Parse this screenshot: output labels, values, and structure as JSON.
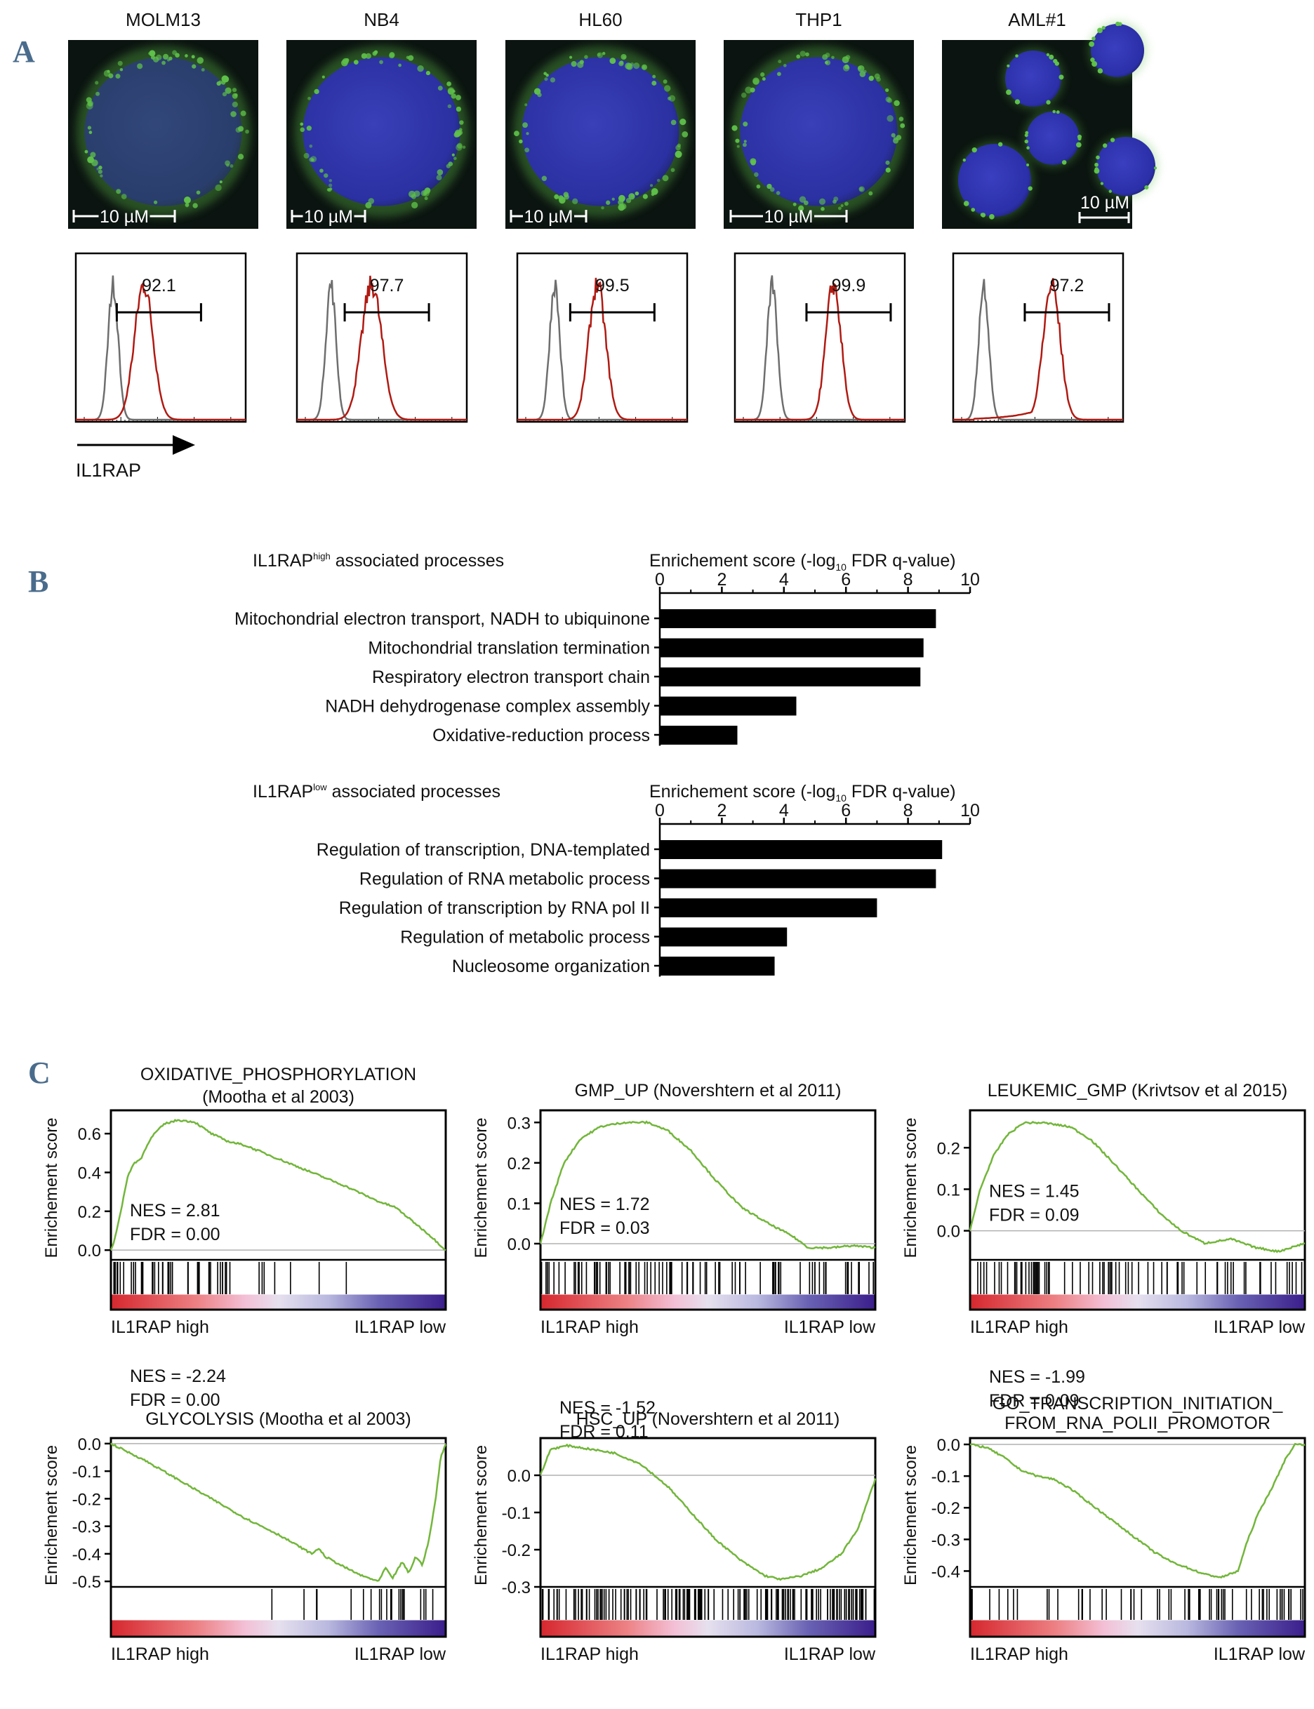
{
  "colors": {
    "panel_letter": "#4a6c8c",
    "isotype": "#6e6e6e",
    "il1rap": "#b01a12",
    "gsea_line": "#72b63a",
    "bars": "#000000",
    "dapi": "#2b2fa8",
    "il1rap_stain": "#5fc04a"
  },
  "panel_a": {
    "letter": "A",
    "x_axis_label": "IL1RAP",
    "cells": [
      {
        "name": "MOLM13",
        "scale_bar": "10 µM",
        "percent": "92.1"
      },
      {
        "name": "NB4",
        "scale_bar": "10 µM",
        "percent": "97.7"
      },
      {
        "name": "HL60",
        "scale_bar": "10 µM",
        "percent": "99.5"
      },
      {
        "name": "THP1",
        "scale_bar": "10 µM",
        "percent": "99.9"
      },
      {
        "name": "AML#1",
        "scale_bar": "10 µM",
        "percent": "97.2"
      }
    ]
  },
  "panel_b": {
    "letter": "B",
    "charts": [
      {
        "type": "bar",
        "title_main": "IL1RAP",
        "title_sup": "high",
        "title_rest": " associated processes",
        "axis_title_pre": "Enrichement score (-log",
        "axis_title_sub": "10",
        "axis_title_post": " FDR q-value)",
        "xlim": [
          0,
          10
        ],
        "ticks": [
          "0",
          "2",
          "4",
          "6",
          "8",
          "10"
        ],
        "categories": [
          "Mitochondrial electron transport, NADH to ubiquinone",
          "Mitochondrial translation termination",
          "Respiratory electron transport chain",
          "NADH dehydrogenase complex assembly",
          "Oxidative-reduction process"
        ],
        "values": [
          8.9,
          8.5,
          8.4,
          4.4,
          2.5
        ]
      },
      {
        "type": "bar",
        "title_main": "IL1RAP",
        "title_sup": "low",
        "title_rest": " associated processes",
        "axis_title_pre": "Enrichement score (-log",
        "axis_title_sub": "10",
        "axis_title_post": " FDR q-value)",
        "xlim": [
          0,
          10
        ],
        "ticks": [
          "0",
          "2",
          "4",
          "6",
          "8",
          "10"
        ],
        "categories": [
          "Regulation of transcription, DNA-templated",
          "Regulation of RNA metabolic process",
          "Regulation of transcription by RNA pol II",
          "Regulation of metabolic process",
          "Nucleosome organization"
        ],
        "values": [
          9.1,
          8.9,
          7.0,
          4.1,
          3.7
        ]
      }
    ]
  },
  "panel_c": {
    "letter": "C",
    "ylabel": "Enrichement score",
    "left_label": "IL1RAP high",
    "right_label": "IL1RAP low",
    "plots": [
      {
        "title1": "OXIDATIVE_PHOSPHORYLATION",
        "title2": "(Mootha et al 2003)",
        "nes": "NES = 2.81",
        "fdr": "FDR = 0.00",
        "ylim": [
          -0.05,
          0.72
        ],
        "ticks": [
          {
            "v": 0.0,
            "t": "0.0"
          },
          {
            "v": 0.2,
            "t": "0.2"
          },
          {
            "v": 0.4,
            "t": "0.4"
          },
          {
            "v": 0.6,
            "t": "0.6"
          }
        ],
        "curve": [
          [
            0,
            0.0
          ],
          [
            0.01,
            0.05
          ],
          [
            0.03,
            0.2
          ],
          [
            0.05,
            0.38
          ],
          [
            0.07,
            0.45
          ],
          [
            0.09,
            0.47
          ],
          [
            0.11,
            0.55
          ],
          [
            0.13,
            0.6
          ],
          [
            0.16,
            0.65
          ],
          [
            0.2,
            0.67
          ],
          [
            0.25,
            0.66
          ],
          [
            0.3,
            0.6
          ],
          [
            0.35,
            0.56
          ],
          [
            0.4,
            0.54
          ],
          [
            0.5,
            0.47
          ],
          [
            0.6,
            0.4
          ],
          [
            0.7,
            0.33
          ],
          [
            0.8,
            0.25
          ],
          [
            0.85,
            0.22
          ],
          [
            0.9,
            0.15
          ],
          [
            0.95,
            0.08
          ],
          [
            1.0,
            0.0
          ]
        ],
        "hit_density": [
          [
            0.0,
            0.2,
            28
          ],
          [
            0.2,
            0.35,
            14
          ],
          [
            0.35,
            0.55,
            6
          ],
          [
            0.55,
            0.8,
            2
          ],
          [
            0.8,
            1.0,
            0
          ]
        ]
      },
      {
        "title1": "GMP_UP (Novershtern et al 2011)",
        "title2": "",
        "nes": "NES = 1.72",
        "fdr": "FDR = 0.03",
        "ylim": [
          -0.04,
          0.33
        ],
        "ticks": [
          {
            "v": 0.0,
            "t": "0.0"
          },
          {
            "v": 0.1,
            "t": "0.1"
          },
          {
            "v": 0.2,
            "t": "0.2"
          },
          {
            "v": 0.3,
            "t": "0.3"
          }
        ],
        "curve": [
          [
            0,
            0.0
          ],
          [
            0.03,
            0.1
          ],
          [
            0.07,
            0.2
          ],
          [
            0.12,
            0.26
          ],
          [
            0.18,
            0.29
          ],
          [
            0.25,
            0.3
          ],
          [
            0.32,
            0.3
          ],
          [
            0.38,
            0.28
          ],
          [
            0.45,
            0.23
          ],
          [
            0.52,
            0.16
          ],
          [
            0.6,
            0.09
          ],
          [
            0.68,
            0.05
          ],
          [
            0.75,
            0.02
          ],
          [
            0.8,
            -0.01
          ],
          [
            0.87,
            -0.01
          ],
          [
            0.93,
            -0.005
          ],
          [
            1.0,
            -0.01
          ]
        ],
        "hit_density": [
          [
            0.0,
            0.3,
            32
          ],
          [
            0.3,
            0.6,
            26
          ],
          [
            0.6,
            0.85,
            16
          ],
          [
            0.85,
            1.0,
            10
          ]
        ]
      },
      {
        "title1": "LEUKEMIC_GMP (Krivtsov et al 2015)",
        "title2": "",
        "nes": "NES = 1.45",
        "fdr": "FDR = 0.09",
        "ylim": [
          -0.07,
          0.29
        ],
        "ticks": [
          {
            "v": 0.0,
            "t": "0.0"
          },
          {
            "v": 0.1,
            "t": "0.1"
          },
          {
            "v": 0.2,
            "t": "0.2"
          }
        ],
        "curve": [
          [
            0,
            0.0
          ],
          [
            0.03,
            0.1
          ],
          [
            0.07,
            0.18
          ],
          [
            0.11,
            0.23
          ],
          [
            0.16,
            0.26
          ],
          [
            0.22,
            0.26
          ],
          [
            0.3,
            0.25
          ],
          [
            0.36,
            0.22
          ],
          [
            0.42,
            0.17
          ],
          [
            0.5,
            0.1
          ],
          [
            0.57,
            0.04
          ],
          [
            0.63,
            0.0
          ],
          [
            0.7,
            -0.03
          ],
          [
            0.78,
            -0.02
          ],
          [
            0.85,
            -0.04
          ],
          [
            0.92,
            -0.05
          ],
          [
            0.96,
            -0.04
          ],
          [
            1.0,
            -0.03
          ]
        ],
        "hit_density": [
          [
            0.0,
            0.3,
            30
          ],
          [
            0.3,
            0.6,
            22
          ],
          [
            0.6,
            0.85,
            14
          ],
          [
            0.85,
            1.0,
            10
          ]
        ]
      },
      {
        "title1": "GLYCOLYSIS (Mootha et al 2003)",
        "title2": "",
        "nes": "NES = -2.24",
        "fdr": "FDR = 0.00",
        "ylim": [
          -0.52,
          0.02
        ],
        "ticks": [
          {
            "v": 0.0,
            "t": "0.0"
          },
          {
            "v": -0.1,
            "t": "-0.1"
          },
          {
            "v": -0.2,
            "t": "-0.2"
          },
          {
            "v": -0.3,
            "t": "-0.3"
          },
          {
            "v": -0.4,
            "t": "-0.4"
          },
          {
            "v": -0.5,
            "t": "-0.5"
          }
        ],
        "curve": [
          [
            0,
            0.0
          ],
          [
            0.1,
            -0.06
          ],
          [
            0.2,
            -0.13
          ],
          [
            0.3,
            -0.2
          ],
          [
            0.4,
            -0.27
          ],
          [
            0.5,
            -0.33
          ],
          [
            0.6,
            -0.4
          ],
          [
            0.62,
            -0.38
          ],
          [
            0.64,
            -0.41
          ],
          [
            0.7,
            -0.45
          ],
          [
            0.75,
            -0.48
          ],
          [
            0.8,
            -0.5
          ],
          [
            0.82,
            -0.45
          ],
          [
            0.84,
            -0.49
          ],
          [
            0.87,
            -0.43
          ],
          [
            0.89,
            -0.47
          ],
          [
            0.91,
            -0.41
          ],
          [
            0.93,
            -0.44
          ],
          [
            0.95,
            -0.35
          ],
          [
            0.97,
            -0.2
          ],
          [
            0.985,
            -0.05
          ],
          [
            1.0,
            0.0
          ]
        ],
        "hit_density": [
          [
            0.0,
            0.4,
            0
          ],
          [
            0.4,
            0.6,
            2
          ],
          [
            0.6,
            0.8,
            5
          ],
          [
            0.8,
            1.0,
            14
          ]
        ]
      },
      {
        "title1": "HSC_UP (Novershtern et al 2011)",
        "title2": "",
        "nes": "NES = -1.52",
        "fdr": "FDR = 0.11",
        "ylim": [
          -0.3,
          0.1
        ],
        "ticks": [
          {
            "v": 0.0,
            "t": "0.0"
          },
          {
            "v": -0.1,
            "t": "-0.1"
          },
          {
            "v": -0.2,
            "t": "-0.2"
          },
          {
            "v": -0.3,
            "t": "-0.3"
          }
        ],
        "curve": [
          [
            0,
            0.0
          ],
          [
            0.03,
            0.07
          ],
          [
            0.08,
            0.08
          ],
          [
            0.15,
            0.07
          ],
          [
            0.22,
            0.06
          ],
          [
            0.3,
            0.03
          ],
          [
            0.38,
            -0.03
          ],
          [
            0.45,
            -0.1
          ],
          [
            0.52,
            -0.17
          ],
          [
            0.6,
            -0.23
          ],
          [
            0.67,
            -0.27
          ],
          [
            0.72,
            -0.28
          ],
          [
            0.78,
            -0.27
          ],
          [
            0.84,
            -0.25
          ],
          [
            0.9,
            -0.21
          ],
          [
            0.95,
            -0.14
          ],
          [
            1.0,
            -0.01
          ]
        ],
        "hit_density": [
          [
            0.0,
            0.3,
            40
          ],
          [
            0.3,
            0.6,
            40
          ],
          [
            0.6,
            0.85,
            40
          ],
          [
            0.85,
            1.0,
            30
          ]
        ]
      },
      {
        "title1": "GO_TRANSCRIPTION_INITIATION_",
        "title2": "FROM_RNA_POLII_PROMOTOR",
        "nes": "NES = -1.99",
        "fdr": "FDR = 0.09",
        "ylim": [
          -0.45,
          0.02
        ],
        "ticks": [
          {
            "v": 0.0,
            "t": "0.0"
          },
          {
            "v": -0.1,
            "t": "-0.1"
          },
          {
            "v": -0.2,
            "t": "-0.2"
          },
          {
            "v": -0.3,
            "t": "-0.3"
          },
          {
            "v": -0.4,
            "t": "-0.4"
          }
        ],
        "curve": [
          [
            0,
            0.0
          ],
          [
            0.05,
            -0.01
          ],
          [
            0.1,
            -0.04
          ],
          [
            0.15,
            -0.08
          ],
          [
            0.2,
            -0.1
          ],
          [
            0.25,
            -0.11
          ],
          [
            0.3,
            -0.14
          ],
          [
            0.35,
            -0.18
          ],
          [
            0.4,
            -0.22
          ],
          [
            0.45,
            -0.26
          ],
          [
            0.5,
            -0.3
          ],
          [
            0.55,
            -0.34
          ],
          [
            0.6,
            -0.37
          ],
          [
            0.65,
            -0.39
          ],
          [
            0.7,
            -0.41
          ],
          [
            0.75,
            -0.42
          ],
          [
            0.8,
            -0.4
          ],
          [
            0.83,
            -0.3
          ],
          [
            0.86,
            -0.22
          ],
          [
            0.88,
            -0.18
          ],
          [
            0.91,
            -0.12
          ],
          [
            0.94,
            -0.05
          ],
          [
            0.97,
            0.0
          ],
          [
            1.0,
            0.0
          ]
        ],
        "hit_density": [
          [
            0.0,
            0.3,
            10
          ],
          [
            0.3,
            0.6,
            14
          ],
          [
            0.6,
            0.85,
            20
          ],
          [
            0.85,
            1.0,
            16
          ]
        ]
      }
    ]
  }
}
